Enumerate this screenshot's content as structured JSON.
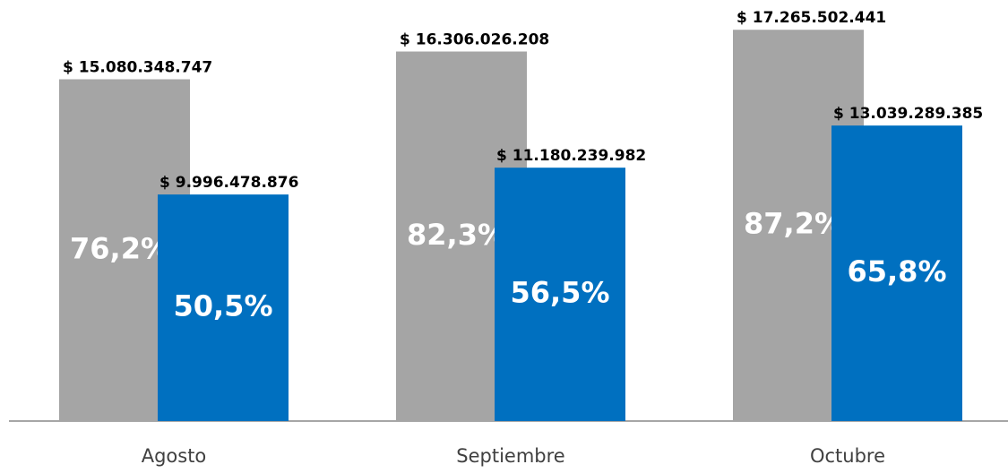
{
  "chart_data": {
    "type": "bar",
    "categories": [
      "Agosto",
      "Septiembre",
      "Octubre"
    ],
    "series": [
      {
        "color": "#a5a5a5",
        "values": [
          15080348747,
          16306026208,
          17265502441
        ],
        "value_labels": [
          "$ 15.080.348.747",
          "$ 16.306.026.208",
          "$ 17.265.502.441"
        ],
        "percent_values": [
          76.2,
          82.3,
          87.2
        ],
        "percent_labels": [
          "76,2%",
          "82,3%",
          "87,2%"
        ]
      },
      {
        "color": "#0070c0",
        "values": [
          9996478876,
          11180239982,
          13039289385
        ],
        "value_labels": [
          "$ 9.996.478.876",
          "$ 11.180.239.982",
          "$ 13.039.289.385"
        ],
        "percent_values": [
          50.5,
          56.5,
          65.8
        ],
        "percent_labels": [
          "50,5%",
          "56,5%",
          "65,8%"
        ]
      }
    ],
    "ylim": [
      0,
      18500000000
    ]
  }
}
